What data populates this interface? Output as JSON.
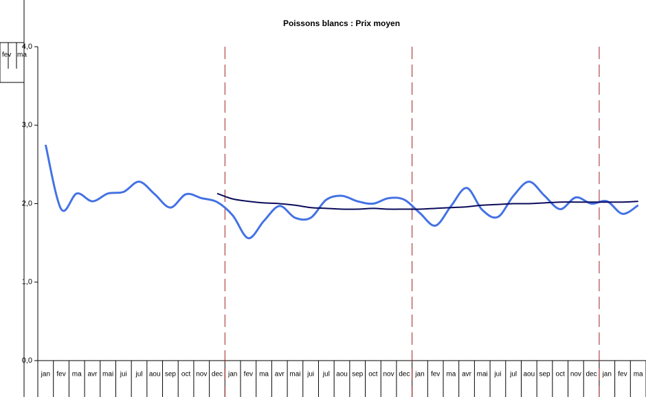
{
  "chart_data": {
    "type": "line",
    "title": "Poissons blancs : Prix moyen",
    "categories": [
      "jan",
      "fev",
      "ma",
      "avr",
      "mai",
      "jui",
      "jul",
      "aou",
      "sep",
      "oct",
      "nov",
      "dec",
      "jan",
      "fev",
      "ma",
      "avr",
      "mai",
      "jui",
      "jul",
      "aou",
      "sep",
      "oct",
      "nov",
      "dec",
      "jan",
      "fev",
      "ma",
      "avr",
      "mai",
      "jui",
      "jul",
      "aou",
      "sep",
      "oct",
      "nov",
      "dec",
      "jan",
      "fev",
      "ma"
    ],
    "series": [
      {
        "color": "#4472e4",
        "values": [
          2.75,
          1.93,
          2.13,
          2.03,
          2.13,
          2.15,
          2.28,
          2.12,
          1.95,
          2.12,
          2.07,
          2.02,
          1.85,
          1.56,
          1.78,
          1.97,
          1.82,
          1.82,
          2.05,
          2.1,
          2.03,
          2.0,
          2.07,
          2.05,
          1.88,
          1.72,
          1.97,
          2.2,
          1.92,
          1.83,
          2.1,
          2.28,
          2.1,
          1.93,
          2.08,
          2.0,
          2.03,
          1.87,
          1.98
        ]
      },
      {
        "color": "#0a0a5a",
        "values": [
          null,
          null,
          null,
          null,
          null,
          null,
          null,
          null,
          null,
          null,
          null,
          2.13,
          2.06,
          2.03,
          2.01,
          2.0,
          1.98,
          1.95,
          1.94,
          1.93,
          1.93,
          1.94,
          1.93,
          1.93,
          1.93,
          1.94,
          1.95,
          1.96,
          1.98,
          1.99,
          2.0,
          2.0,
          2.01,
          2.02,
          2.02,
          2.02,
          2.02,
          2.02,
          2.03
        ]
      }
    ],
    "ylim": [
      0,
      4
    ],
    "yticks": [
      {
        "value": 0,
        "label": "0,0"
      },
      {
        "value": 1,
        "label": "1,0"
      },
      {
        "value": 2,
        "label": "2,0"
      },
      {
        "value": 3,
        "label": "3,0"
      },
      {
        "value": 4,
        "label": "4,0"
      }
    ],
    "grid": false,
    "overlay_labels": [
      "fev",
      "ma"
    ]
  }
}
